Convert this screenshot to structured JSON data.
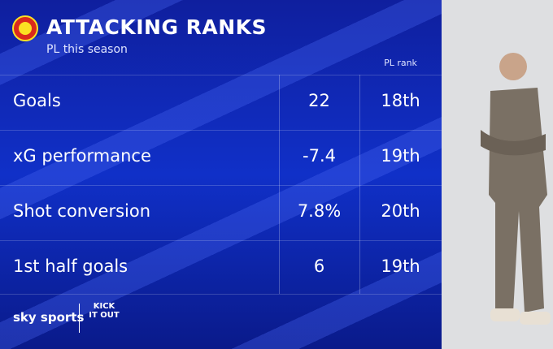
{
  "header": {
    "title": "ATTACKING RANKS",
    "subtitle": "PL this season"
  },
  "table": {
    "column_header": "PL rank",
    "rows": [
      [
        "Goals",
        "22",
        "18th"
      ],
      [
        "xG performance",
        "-7.4",
        "19th"
      ],
      [
        "Shot conversion",
        "7.8%",
        "20th"
      ],
      [
        "1st half goals",
        "6",
        "19th"
      ]
    ]
  },
  "footer": {
    "brand": "sky sports",
    "campaign": "KICK IT OUT"
  }
}
